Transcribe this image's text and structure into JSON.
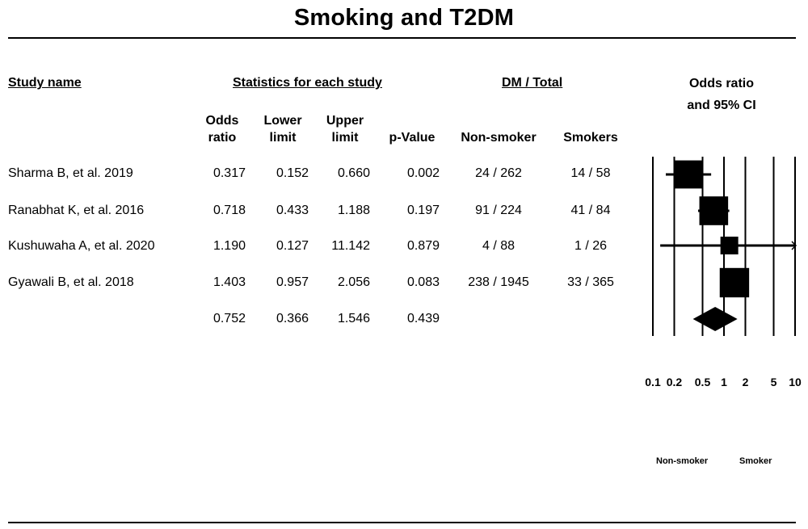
{
  "title": "Smoking and T2DM",
  "headers": {
    "study_name": "Study name",
    "statistics": "Statistics for each study",
    "dm_total": "DM / Total",
    "plot_title_line1": "Odds ratio",
    "plot_title_line2": "and 95%  CI"
  },
  "columns": {
    "odds_ratio": [
      "Odds",
      "ratio"
    ],
    "lower_limit": [
      "Lower",
      "limit"
    ],
    "upper_limit": [
      "Upper",
      "limit"
    ],
    "p_value": "p-Value",
    "non_smoker": "Non-smoker",
    "smokers": "Smokers"
  },
  "rows": [
    {
      "study": "Sharma B, et al. 2019",
      "or": "0.317",
      "lower": "0.152",
      "upper": "0.660",
      "p": "0.002",
      "non_smoker": "24 / 262",
      "smokers": "14 / 58"
    },
    {
      "study": "Ranabhat K, et al. 2016",
      "or": "0.718",
      "lower": "0.433",
      "upper": "1.188",
      "p": "0.197",
      "non_smoker": "91 / 224",
      "smokers": "41 / 84"
    },
    {
      "study": "Kushuwaha A, et al. 2020",
      "or": "1.190",
      "lower": "0.127",
      "upper": "11.142",
      "p": "0.879",
      "non_smoker": "4 / 88",
      "smokers": "1 / 26"
    },
    {
      "study": "Gyawali B, et al. 2018",
      "or": "1.403",
      "lower": "0.957",
      "upper": "2.056",
      "p": "0.083",
      "non_smoker": "238 / 1945",
      "smokers": "33 / 365"
    },
    {
      "study": "",
      "or": "0.752",
      "lower": "0.366",
      "upper": "1.546",
      "p": "0.439",
      "non_smoker": "",
      "smokers": ""
    }
  ],
  "axis": {
    "tick_labels": [
      "0.1",
      "0.2",
      "0.5",
      "1",
      "2",
      "5",
      "10"
    ],
    "favours_left": "Non-smoker",
    "favours_right": "Smoker"
  },
  "chart_data": {
    "type": "forest",
    "title": "Odds ratio and 95% CI",
    "scale": "log",
    "xlim": [
      0.1,
      10
    ],
    "ticks": [
      0.1,
      0.2,
      0.5,
      1,
      2,
      5,
      10
    ],
    "studies": [
      {
        "name": "Sharma B, et al. 2019",
        "or": 0.317,
        "lower": 0.152,
        "upper": 0.66,
        "weight": 0.26
      },
      {
        "name": "Ranabhat K, et al. 2016",
        "or": 0.718,
        "lower": 0.433,
        "upper": 1.188,
        "weight": 0.27
      },
      {
        "name": "Kushuwaha A, et al. 2020",
        "or": 1.19,
        "lower": 0.127,
        "upper": 11.142,
        "weight": 0.1
      },
      {
        "name": "Gyawali B, et al. 2018",
        "or": 1.403,
        "lower": 0.957,
        "upper": 2.056,
        "weight": 0.28
      }
    ],
    "summary": {
      "or": 0.752,
      "lower": 0.366,
      "upper": 1.546
    }
  }
}
